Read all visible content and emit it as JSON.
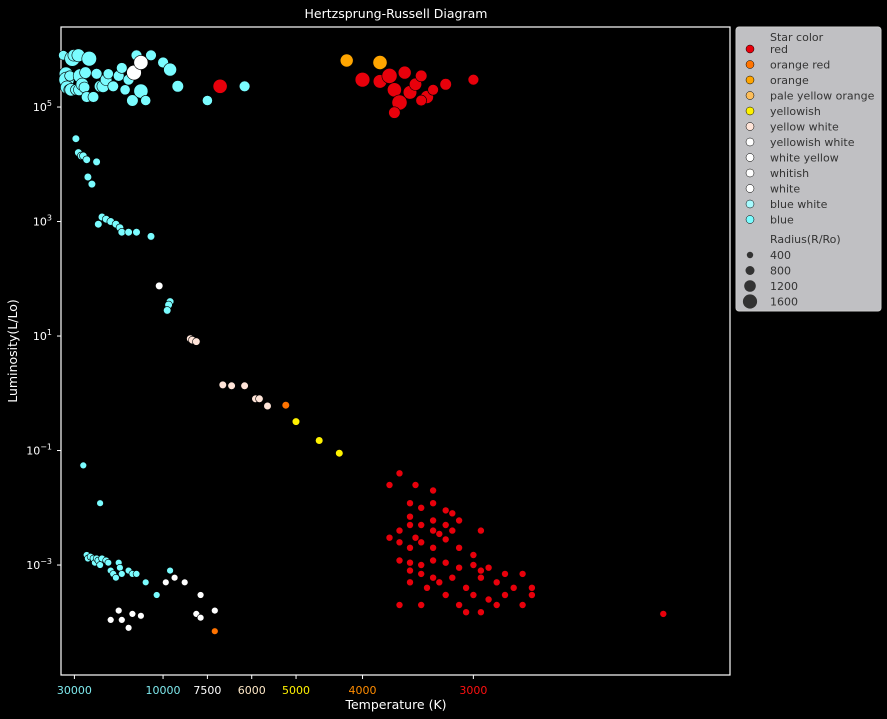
{
  "chart_data": {
    "type": "scatter",
    "title": "Hertzsprung-Russell Diagram",
    "xlabel": "Temperature (K)",
    "ylabel": "Luminosity(L/Lo)",
    "x_scale": "reciprocal",
    "x_reversed": true,
    "y_scale": "log",
    "xlim": [
      43000,
      1900
    ],
    "ylim": [
      1.2e-05,
      2500000
    ],
    "grid": false,
    "legend_position": "right outside",
    "x_ticks": [
      {
        "value": 30000,
        "label": "30000",
        "color": "#7ee8ec"
      },
      {
        "value": 10000,
        "label": "10000",
        "color": "#7ee8ec"
      },
      {
        "value": 7500,
        "label": "7500",
        "color": "#ffffff"
      },
      {
        "value": 6000,
        "label": "6000",
        "color": "#fde7c6"
      },
      {
        "value": 5000,
        "label": "5000",
        "color": "#fff200"
      },
      {
        "value": 4000,
        "label": "4000",
        "color": "#ff8c00"
      },
      {
        "value": 3000,
        "label": "3000",
        "color": "#ff1010"
      }
    ],
    "y_ticks": [
      {
        "value": 100000,
        "base": "10",
        "exp": "5"
      },
      {
        "value": 1000,
        "base": "10",
        "exp": "3"
      },
      {
        "value": 10,
        "base": "10",
        "exp": "1"
      },
      {
        "value": 0.1,
        "base": "10",
        "exp": "−1"
      },
      {
        "value": 0.001,
        "base": "10",
        "exp": "−3"
      }
    ],
    "legend": {
      "color_title": "Star color",
      "size_title": "Radius(R/Ro)",
      "color_entries": [
        {
          "label": "red",
          "color": "#e8000b"
        },
        {
          "label": "orange red",
          "color": "#ff7300"
        },
        {
          "label": "orange",
          "color": "#ffa500"
        },
        {
          "label": "pale yellow orange",
          "color": "#fdbe5a"
        },
        {
          "label": "yellowish",
          "color": "#fff200"
        },
        {
          "label": "yellow white",
          "color": "#ffe4d8"
        },
        {
          "label": "yellowish white",
          "color": "#ffffff"
        },
        {
          "label": "white yellow",
          "color": "#ffffff"
        },
        {
          "label": "whitish",
          "color": "#ffffff"
        },
        {
          "label": "white",
          "color": "#ffffff"
        },
        {
          "label": "blue white",
          "color": "#a8fbff"
        },
        {
          "label": "blue",
          "color": "#7afcff"
        }
      ],
      "size_entries": [
        {
          "label": "400",
          "radius": 400
        },
        {
          "label": "800",
          "radius": 800
        },
        {
          "label": "1200",
          "radius": 1200
        },
        {
          "label": "1600",
          "radius": 1600
        }
      ]
    },
    "series": [
      {
        "name": "blue",
        "color": "#7afcff",
        "points": [
          [
            40000,
            800000,
            100
          ],
          [
            37000,
            380000,
            600
          ],
          [
            36500,
            300000,
            900
          ],
          [
            36000,
            220000,
            500
          ],
          [
            34000,
            200000,
            200
          ],
          [
            33500,
            350000,
            150
          ],
          [
            32500,
            200000,
            400
          ],
          [
            31500,
            700000,
            900
          ],
          [
            30500,
            800000,
            300
          ],
          [
            29000,
            200000,
            200
          ],
          [
            27500,
            800000,
            500
          ],
          [
            27000,
            200000,
            300
          ],
          [
            26500,
            350000,
            700
          ],
          [
            25500,
            250000,
            400
          ],
          [
            24500,
            220000,
            200
          ],
          [
            24000,
            400000,
            300
          ],
          [
            23500,
            150000,
            200
          ],
          [
            22500,
            700000,
            800
          ],
          [
            21000,
            150000,
            200
          ],
          [
            20000,
            380000,
            200
          ],
          [
            19000,
            230000,
            300
          ],
          [
            18200,
            230000,
            400
          ],
          [
            17500,
            300000,
            300
          ],
          [
            17000,
            380000,
            150
          ],
          [
            16000,
            230000,
            200
          ],
          [
            15000,
            350000,
            200
          ],
          [
            14500,
            480000,
            200
          ],
          [
            14000,
            200000,
            150
          ],
          [
            13500,
            300000,
            200
          ],
          [
            13000,
            130000,
            300
          ],
          [
            12500,
            800000,
            200
          ],
          [
            12000,
            190000,
            700
          ],
          [
            11500,
            130000,
            150
          ],
          [
            11000,
            800000,
            200
          ],
          [
            10000,
            600000,
            200
          ],
          [
            9500,
            450000,
            500
          ],
          [
            9000,
            230000,
            300
          ],
          [
            7500,
            130000,
            150
          ],
          [
            6200,
            230000,
            200
          ],
          [
            29000,
            28000,
            10
          ],
          [
            27500,
            16000,
            10
          ],
          [
            26000,
            14000,
            10
          ],
          [
            25000,
            14000,
            10
          ],
          [
            23500,
            12000,
            10
          ],
          [
            23000,
            6000,
            10
          ],
          [
            21500,
            4500,
            10
          ],
          [
            20000,
            11000,
            10
          ],
          [
            19500,
            900,
            10
          ],
          [
            18500,
            1200,
            10
          ],
          [
            17500,
            1100,
            10
          ],
          [
            16500,
            1000,
            10
          ],
          [
            15500,
            900,
            10
          ],
          [
            14800,
            780,
            10
          ],
          [
            14500,
            650,
            10
          ],
          [
            13500,
            650,
            10
          ],
          [
            12500,
            650,
            10
          ],
          [
            11000,
            550,
            10
          ],
          [
            9500,
            40,
            10
          ],
          [
            9600,
            35,
            10
          ],
          [
            9700,
            28,
            10
          ],
          [
            25000,
            0.055,
            0.1
          ],
          [
            19000,
            0.012,
            0.1
          ],
          [
            23500,
            0.0015,
            0.1
          ],
          [
            23000,
            0.0013,
            0.1
          ],
          [
            22000,
            0.0014,
            0.1
          ],
          [
            21000,
            0.0013,
            0.1
          ],
          [
            20500,
            0.0011,
            0.1
          ],
          [
            20000,
            0.0013,
            0.1
          ],
          [
            19500,
            0.0012,
            0.1
          ],
          [
            19000,
            0.001,
            0.1
          ],
          [
            18500,
            0.0013,
            0.1
          ],
          [
            17500,
            0.0012,
            0.1
          ],
          [
            17000,
            0.0011,
            0.1
          ],
          [
            16500,
            0.0008,
            0.1
          ],
          [
            16000,
            0.0007,
            0.1
          ],
          [
            15500,
            0.0006,
            0.1
          ],
          [
            15000,
            0.0011,
            0.1
          ],
          [
            14800,
            0.0009,
            0.1
          ],
          [
            14500,
            0.0007,
            0.1
          ],
          [
            13500,
            0.0008,
            0.1
          ],
          [
            13000,
            0.0007,
            0.1
          ],
          [
            12500,
            0.0007,
            0.1
          ],
          [
            11500,
            0.0005,
            0.1
          ],
          [
            10500,
            0.0003,
            0.1
          ],
          [
            9500,
            0.0008,
            0.1
          ]
        ]
      },
      {
        "name": "white",
        "color": "#ffffff",
        "points": [
          [
            12800,
            400000,
            800
          ],
          [
            12000,
            600000,
            700
          ],
          [
            10300,
            75,
            10
          ],
          [
            9800,
            0.0005,
            0.1
          ],
          [
            9200,
            0.0006,
            0.1
          ],
          [
            8600,
            0.0005,
            0.1
          ],
          [
            7800,
            0.0003,
            0.1
          ],
          [
            16500,
            0.00011,
            0.1
          ],
          [
            15000,
            0.00016,
            0.1
          ],
          [
            14500,
            0.00011,
            0.1
          ],
          [
            13500,
            8e-05,
            0.1
          ],
          [
            13000,
            0.00014,
            0.1
          ],
          [
            12000,
            0.00013,
            0.1
          ],
          [
            8000,
            0.00014,
            0.1
          ],
          [
            7800,
            0.00012,
            0.1
          ],
          [
            7200,
            0.00016,
            0.1
          ]
        ]
      },
      {
        "name": "yellow white",
        "color": "#ffe4d8",
        "points": [
          [
            8300,
            9,
            10
          ],
          [
            8200,
            8.5,
            10
          ],
          [
            8000,
            8,
            10
          ],
          [
            6900,
            1.4,
            10
          ],
          [
            6600,
            1.35,
            10
          ],
          [
            6200,
            1.35,
            10
          ],
          [
            5900,
            0.8,
            10
          ],
          [
            5800,
            0.8,
            10
          ],
          [
            5600,
            0.6,
            10
          ]
        ]
      },
      {
        "name": "yellowish",
        "color": "#fff200",
        "points": [
          [
            5000,
            0.32,
            10
          ],
          [
            4600,
            0.15,
            10
          ],
          [
            4300,
            0.09,
            10
          ]
        ]
      },
      {
        "name": "orange red",
        "color": "#ff7300",
        "points": [
          [
            5200,
            0.62,
            10
          ],
          [
            7200,
            7e-05,
            0.1
          ]
        ]
      },
      {
        "name": "orange",
        "color": "#ffa500",
        "points": [
          [
            4200,
            650000,
            500
          ],
          [
            3800,
            600000,
            700
          ]
        ]
      },
      {
        "name": "red",
        "color": "#e8000b",
        "points": [
          [
            7000,
            230000,
            700
          ],
          [
            4000,
            300000,
            800
          ],
          [
            3800,
            280000,
            600
          ],
          [
            3700,
            350000,
            900
          ],
          [
            3650,
            200000,
            700
          ],
          [
            3600,
            120000,
            900
          ],
          [
            3550,
            400000,
            500
          ],
          [
            3500,
            180000,
            600
          ],
          [
            3450,
            250000,
            400
          ],
          [
            3400,
            350000,
            300
          ],
          [
            3350,
            150000,
            500
          ],
          [
            3300,
            200000,
            200
          ],
          [
            3200,
            250000,
            300
          ],
          [
            3000,
            300000,
            200
          ],
          [
            3650,
            80000,
            300
          ],
          [
            3400,
            130000,
            200
          ],
          [
            3600,
            0.04,
            0.2
          ],
          [
            3450,
            0.025,
            0.2
          ],
          [
            3300,
            0.02,
            0.2
          ],
          [
            3700,
            0.025,
            0.2
          ],
          [
            3500,
            0.012,
            0.2
          ],
          [
            3400,
            0.01,
            0.2
          ],
          [
            3300,
            0.012,
            0.2
          ],
          [
            3200,
            0.009,
            0.2
          ],
          [
            3150,
            0.008,
            0.2
          ],
          [
            3100,
            0.006,
            0.2
          ],
          [
            3500,
            0.007,
            0.2
          ],
          [
            3400,
            0.005,
            0.2
          ],
          [
            3300,
            0.006,
            0.2
          ],
          [
            3200,
            0.005,
            0.2
          ],
          [
            3600,
            0.004,
            0.2
          ],
          [
            3500,
            0.005,
            0.2
          ],
          [
            3450,
            0.003,
            0.2
          ],
          [
            3300,
            0.004,
            0.2
          ],
          [
            3250,
            0.0035,
            0.2
          ],
          [
            3150,
            0.004,
            0.2
          ],
          [
            2950,
            0.004,
            0.2
          ],
          [
            3700,
            0.003,
            0.2
          ],
          [
            3600,
            0.0025,
            0.2
          ],
          [
            3500,
            0.002,
            0.2
          ],
          [
            3400,
            0.0025,
            0.2
          ],
          [
            3300,
            0.002,
            0.2
          ],
          [
            3200,
            0.0028,
            0.2
          ],
          [
            3100,
            0.002,
            0.2
          ],
          [
            3000,
            0.0015,
            0.2
          ],
          [
            3600,
            0.0012,
            0.2
          ],
          [
            3500,
            0.0011,
            0.2
          ],
          [
            3400,
            0.001,
            0.2
          ],
          [
            3300,
            0.0012,
            0.2
          ],
          [
            3200,
            0.0011,
            0.2
          ],
          [
            3100,
            0.0009,
            0.2
          ],
          [
            3000,
            0.001,
            0.2
          ],
          [
            2950,
            0.0008,
            0.2
          ],
          [
            2900,
            0.0009,
            0.2
          ],
          [
            2800,
            0.0007,
            0.2
          ],
          [
            2700,
            0.0007,
            0.2
          ],
          [
            3500,
            0.0008,
            0.2
          ],
          [
            3400,
            0.0007,
            0.2
          ],
          [
            3300,
            0.0006,
            0.2
          ],
          [
            3250,
            0.0005,
            0.2
          ],
          [
            3150,
            0.0006,
            0.2
          ],
          [
            3050,
            0.0004,
            0.2
          ],
          [
            2950,
            0.0006,
            0.2
          ],
          [
            2850,
            0.0005,
            0.2
          ],
          [
            2750,
            0.0004,
            0.2
          ],
          [
            2650,
            0.0004,
            0.2
          ],
          [
            3500,
            0.0005,
            0.2
          ],
          [
            3350,
            0.0004,
            0.2
          ],
          [
            3200,
            0.0003,
            0.2
          ],
          [
            3100,
            0.0002,
            0.2
          ],
          [
            3000,
            0.0003,
            0.2
          ],
          [
            2900,
            0.00025,
            0.2
          ],
          [
            2800,
            0.0003,
            0.2
          ],
          [
            2700,
            0.0002,
            0.2
          ],
          [
            2650,
            0.0003,
            0.2
          ],
          [
            3600,
            0.0002,
            0.2
          ],
          [
            3400,
            0.0002,
            0.2
          ],
          [
            3050,
            0.00015,
            0.2
          ],
          [
            2950,
            0.00015,
            0.2
          ],
          [
            2850,
            0.0002,
            0.2
          ],
          [
            2100,
            0.00014,
            0.2
          ]
        ]
      }
    ]
  }
}
